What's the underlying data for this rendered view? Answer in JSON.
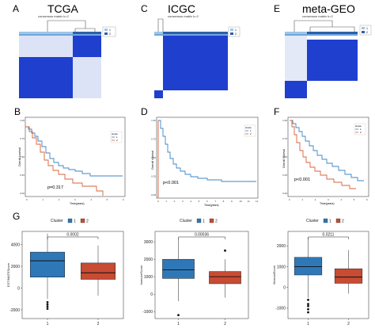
{
  "panel_letters": {
    "A": "A",
    "B": "B",
    "C": "C",
    "D": "D",
    "E": "E",
    "F": "F",
    "G": "G"
  },
  "dataset_titles": {
    "tcga": "TCGA",
    "icgc": "ICGC",
    "geo": "meta-GEO"
  },
  "heatmaps": {
    "dendro_title": "consensus matrix k=2",
    "legend_labels": [
      "1",
      "2"
    ],
    "colors": {
      "cluster1": "#9fc5e8",
      "cluster2": "#2e5fa8",
      "matrix_high": "#1f3fcf",
      "matrix_low": "#ffffff"
    }
  },
  "survival": {
    "ylabel": "Overall survival",
    "xlabel": "Time(years)",
    "legend_title": "strata",
    "legend_labels": [
      "1",
      "2"
    ],
    "colors": {
      "group1": "#3d86c6",
      "group2": "#d9603b"
    },
    "B": {
      "pvalue": "p=0.317",
      "x_ticks": [
        "0",
        "1",
        "2",
        "3",
        "4",
        "5",
        "6"
      ],
      "y_ticks": [
        "0.00",
        "0.25",
        "0.50",
        "0.75",
        "1.00"
      ]
    },
    "D": {
      "pvalue": "p<0.001",
      "x_ticks": [
        "0",
        "1",
        "2",
        "3",
        "4",
        "5",
        "6",
        "7",
        "8",
        "9",
        "10",
        "11",
        "12"
      ],
      "y_ticks": [
        "0.00",
        "0.25",
        "0.50",
        "0.75",
        "1.00"
      ]
    },
    "F": {
      "pvalue": "p<0.001",
      "x_ticks": [
        "0",
        "1",
        "2",
        "3",
        "4",
        "5",
        "6"
      ],
      "y_ticks": [
        "0.00",
        "0.25",
        "0.50",
        "0.75",
        "1.00"
      ]
    }
  },
  "chart_data": [
    {
      "type": "box",
      "legend_title": "Cluster",
      "categories": [
        "1",
        "2"
      ],
      "ylabel": "ESTIMATEScore",
      "pvalue": "0.0002",
      "y_ticks": [
        "-2000",
        "0",
        "2000",
        "4000"
      ],
      "ylim": [
        -2800,
        5200
      ],
      "boxes": [
        {
          "name": "1",
          "min": -1000,
          "q1": 1000,
          "median": 2500,
          "q3": 3300,
          "max": 5000,
          "outliers": [
            -1300,
            -1500,
            -1700,
            -1900
          ]
        },
        {
          "name": "2",
          "min": -700,
          "q1": 800,
          "median": 1400,
          "q3": 2300,
          "max": 3900,
          "outliers": []
        }
      ]
    },
    {
      "type": "box",
      "legend_title": "Cluster",
      "categories": [
        "1",
        "2"
      ],
      "ylabel": "ImmuneScore",
      "pvalue": "0.00036",
      "y_ticks": [
        "-1000",
        "0",
        "1000",
        "2000",
        "3000"
      ],
      "ylim": [
        -1400,
        3600
      ],
      "boxes": [
        {
          "name": "1",
          "min": -400,
          "q1": 900,
          "median": 1400,
          "q3": 2000,
          "max": 3200,
          "outliers": [
            -1200
          ]
        },
        {
          "name": "2",
          "min": -200,
          "q1": 600,
          "median": 1000,
          "q3": 1300,
          "max": 2000,
          "outliers": [
            2500
          ]
        }
      ]
    },
    {
      "type": "box",
      "legend_title": "Cluster",
      "categories": [
        "1",
        "2"
      ],
      "ylabel": "StromalScore",
      "pvalue": "0.0211",
      "y_ticks": [
        "-1000",
        "0",
        "1000",
        "2000"
      ],
      "ylim": [
        -1500,
        2700
      ],
      "boxes": [
        {
          "name": "1",
          "min": -500,
          "q1": 600,
          "median": 1000,
          "q3": 1450,
          "max": 2400,
          "outliers": [
            -600,
            -800,
            -900,
            -1050,
            -1200
          ]
        },
        {
          "name": "2",
          "min": -300,
          "q1": 200,
          "median": 500,
          "q3": 900,
          "max": 1800,
          "outliers": []
        }
      ]
    }
  ],
  "box_colors": {
    "1": "#2f78b7",
    "2": "#c84b33"
  }
}
